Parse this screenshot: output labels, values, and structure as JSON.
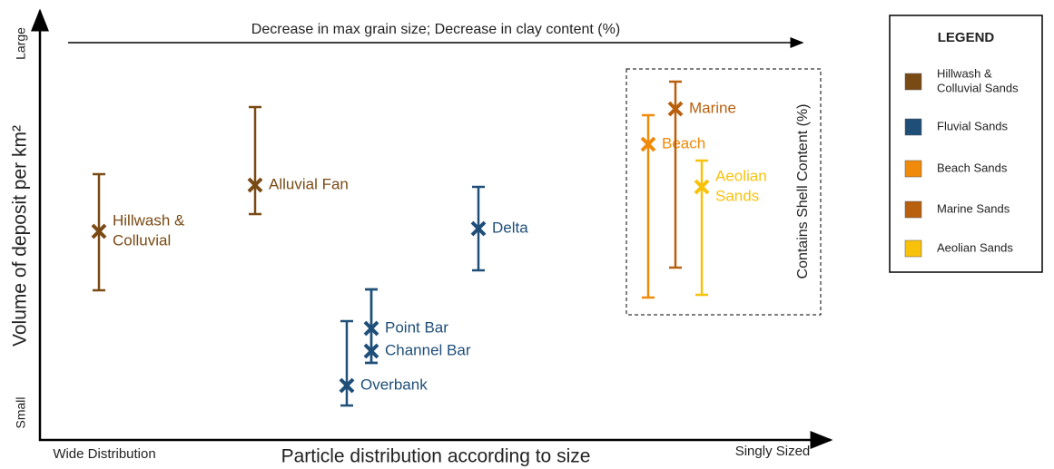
{
  "axes": {
    "y_label": "Volume of deposit per km²",
    "y_top": "Large",
    "y_bottom": "Small",
    "x_label": "Particle distribution according to size",
    "x_left": "Wide Distribution",
    "x_right": "Singly Sized",
    "top_arrow": "Decrease in max grain size; Decrease in clay content (%)"
  },
  "shell_box": {
    "label": "Contains Shell Content (%)"
  },
  "nodes": [
    {
      "label_lines": [
        "Hillwash &",
        "Colluvial"
      ],
      "color": "#7a4a14"
    },
    {
      "label_lines": [
        "Alluvial Fan"
      ],
      "color": "#7a4a14"
    },
    {
      "label_lines": [
        "Delta"
      ],
      "color": "#1f4e79"
    },
    {
      "label_lines": [
        "Point Bar"
      ],
      "color": "#1f4e79"
    },
    {
      "label_lines": [
        "Channel Bar"
      ],
      "color": "#1f4e79"
    },
    {
      "label_lines": [
        "Overbank"
      ],
      "color": "#1f4e79"
    },
    {
      "label_lines": [
        "Beach"
      ],
      "color": "#f08a0a"
    },
    {
      "label_lines": [
        "Marine"
      ],
      "color": "#b8600e"
    },
    {
      "label_lines": [
        "Aeolian",
        "Sands"
      ],
      "color": "#f9c20a"
    }
  ],
  "legend": {
    "title": "LEGEND",
    "items": [
      {
        "label_lines": [
          "Hillwash &",
          "Colluvial Sands"
        ],
        "color": "#7a4a14"
      },
      {
        "label_lines": [
          "Fluvial Sands"
        ],
        "color": "#1f4e79"
      },
      {
        "label_lines": [
          "Beach Sands"
        ],
        "color": "#f08a0a"
      },
      {
        "label_lines": [
          "Marine Sands"
        ],
        "color": "#b8600e"
      },
      {
        "label_lines": [
          "Aeolian Sands"
        ],
        "color": "#f9c20a"
      }
    ]
  }
}
